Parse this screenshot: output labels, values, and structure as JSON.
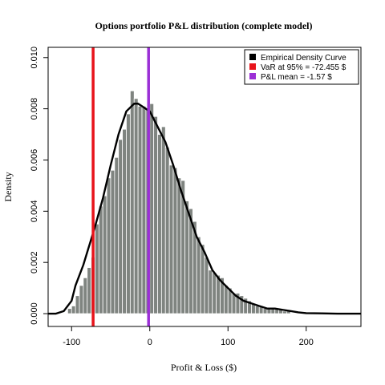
{
  "chart_data": {
    "type": "bar",
    "title": "Options portfolio P&L distribution (complete model)",
    "xlabel": "Profit & Loss ($)",
    "ylabel": "Density",
    "xlim": [
      -130,
      270
    ],
    "ylim": [
      -0.0005,
      0.0104
    ],
    "xticks": [
      -100,
      0,
      100,
      200
    ],
    "yticks": [
      0.0,
      0.002,
      0.004,
      0.006,
      0.008,
      0.01
    ],
    "ytick_labels": [
      "0.000",
      "0.002",
      "0.004",
      "0.006",
      "0.008",
      "0.010"
    ],
    "xtick_labels": [
      "-100",
      "0",
      "100",
      "200"
    ],
    "histogram": {
      "bin_width": 5,
      "bin_starts": [
        -105,
        -100,
        -95,
        -90,
        -85,
        -80,
        -75,
        -70,
        -65,
        -60,
        -55,
        -50,
        -45,
        -40,
        -35,
        -30,
        -25,
        -20,
        -15,
        -10,
        -5,
        0,
        5,
        10,
        15,
        20,
        25,
        30,
        35,
        40,
        45,
        50,
        55,
        60,
        65,
        70,
        75,
        80,
        85,
        90,
        95,
        100,
        105,
        110,
        115,
        120,
        125,
        130,
        135,
        140,
        145,
        150,
        155,
        160,
        165,
        170,
        175
      ],
      "density": [
        0.0002,
        0.0003,
        0.0007,
        0.0011,
        0.0014,
        0.0018,
        0.0022,
        0.0035,
        0.0042,
        0.0046,
        0.0053,
        0.0056,
        0.0061,
        0.0068,
        0.0072,
        0.0078,
        0.0087,
        0.0084,
        0.0081,
        0.0081,
        0.008,
        0.0082,
        0.0077,
        0.007,
        0.0073,
        0.0065,
        0.0058,
        0.0057,
        0.0053,
        0.0052,
        0.0044,
        0.0041,
        0.0036,
        0.003,
        0.0027,
        0.0022,
        0.0017,
        0.0016,
        0.0015,
        0.0014,
        0.0011,
        0.001,
        0.0008,
        0.0008,
        0.0007,
        0.0006,
        0.0005,
        0.0004,
        0.0003,
        0.0003,
        0.0002,
        0.0002,
        0.0002,
        0.0002,
        0.0002,
        0.0001,
        0.0001
      ],
      "color": "#7f8480"
    },
    "density_curve": {
      "name": "Empirical Density Curve",
      "color": "#000000",
      "x": [
        -130,
        -120,
        -110,
        -100,
        -95,
        -90,
        -85,
        -80,
        -75,
        -70,
        -60,
        -50,
        -40,
        -30,
        -20,
        -15,
        -10,
        -5,
        0,
        10,
        20,
        30,
        40,
        50,
        60,
        70,
        80,
        90,
        100,
        110,
        120,
        130,
        140,
        150,
        160,
        170,
        180,
        190,
        200,
        220,
        240,
        270
      ],
      "y": [
        0.0,
        0.0,
        0.0001,
        0.0005,
        0.0011,
        0.0015,
        0.0019,
        0.0024,
        0.0029,
        0.0034,
        0.0045,
        0.0058,
        0.007,
        0.0079,
        0.0082,
        0.0082,
        0.0081,
        0.008,
        0.0079,
        0.0073,
        0.0067,
        0.0058,
        0.0048,
        0.0039,
        0.003,
        0.0024,
        0.0017,
        0.0013,
        0.001,
        0.0007,
        0.0005,
        0.0004,
        0.0003,
        0.0002,
        0.0002,
        0.00015,
        0.0001,
        5e-05,
        2e-05,
        1e-05,
        0.0,
        0.0
      ]
    },
    "vlines": [
      {
        "name": "VaR at 95% = -72.455  $",
        "x": -72.455,
        "color": "#e8141b"
      },
      {
        "name": "P&L mean = -1.57 $",
        "x": -1.57,
        "color": "#9b2fd6"
      }
    ],
    "legend_position": "top-right"
  }
}
